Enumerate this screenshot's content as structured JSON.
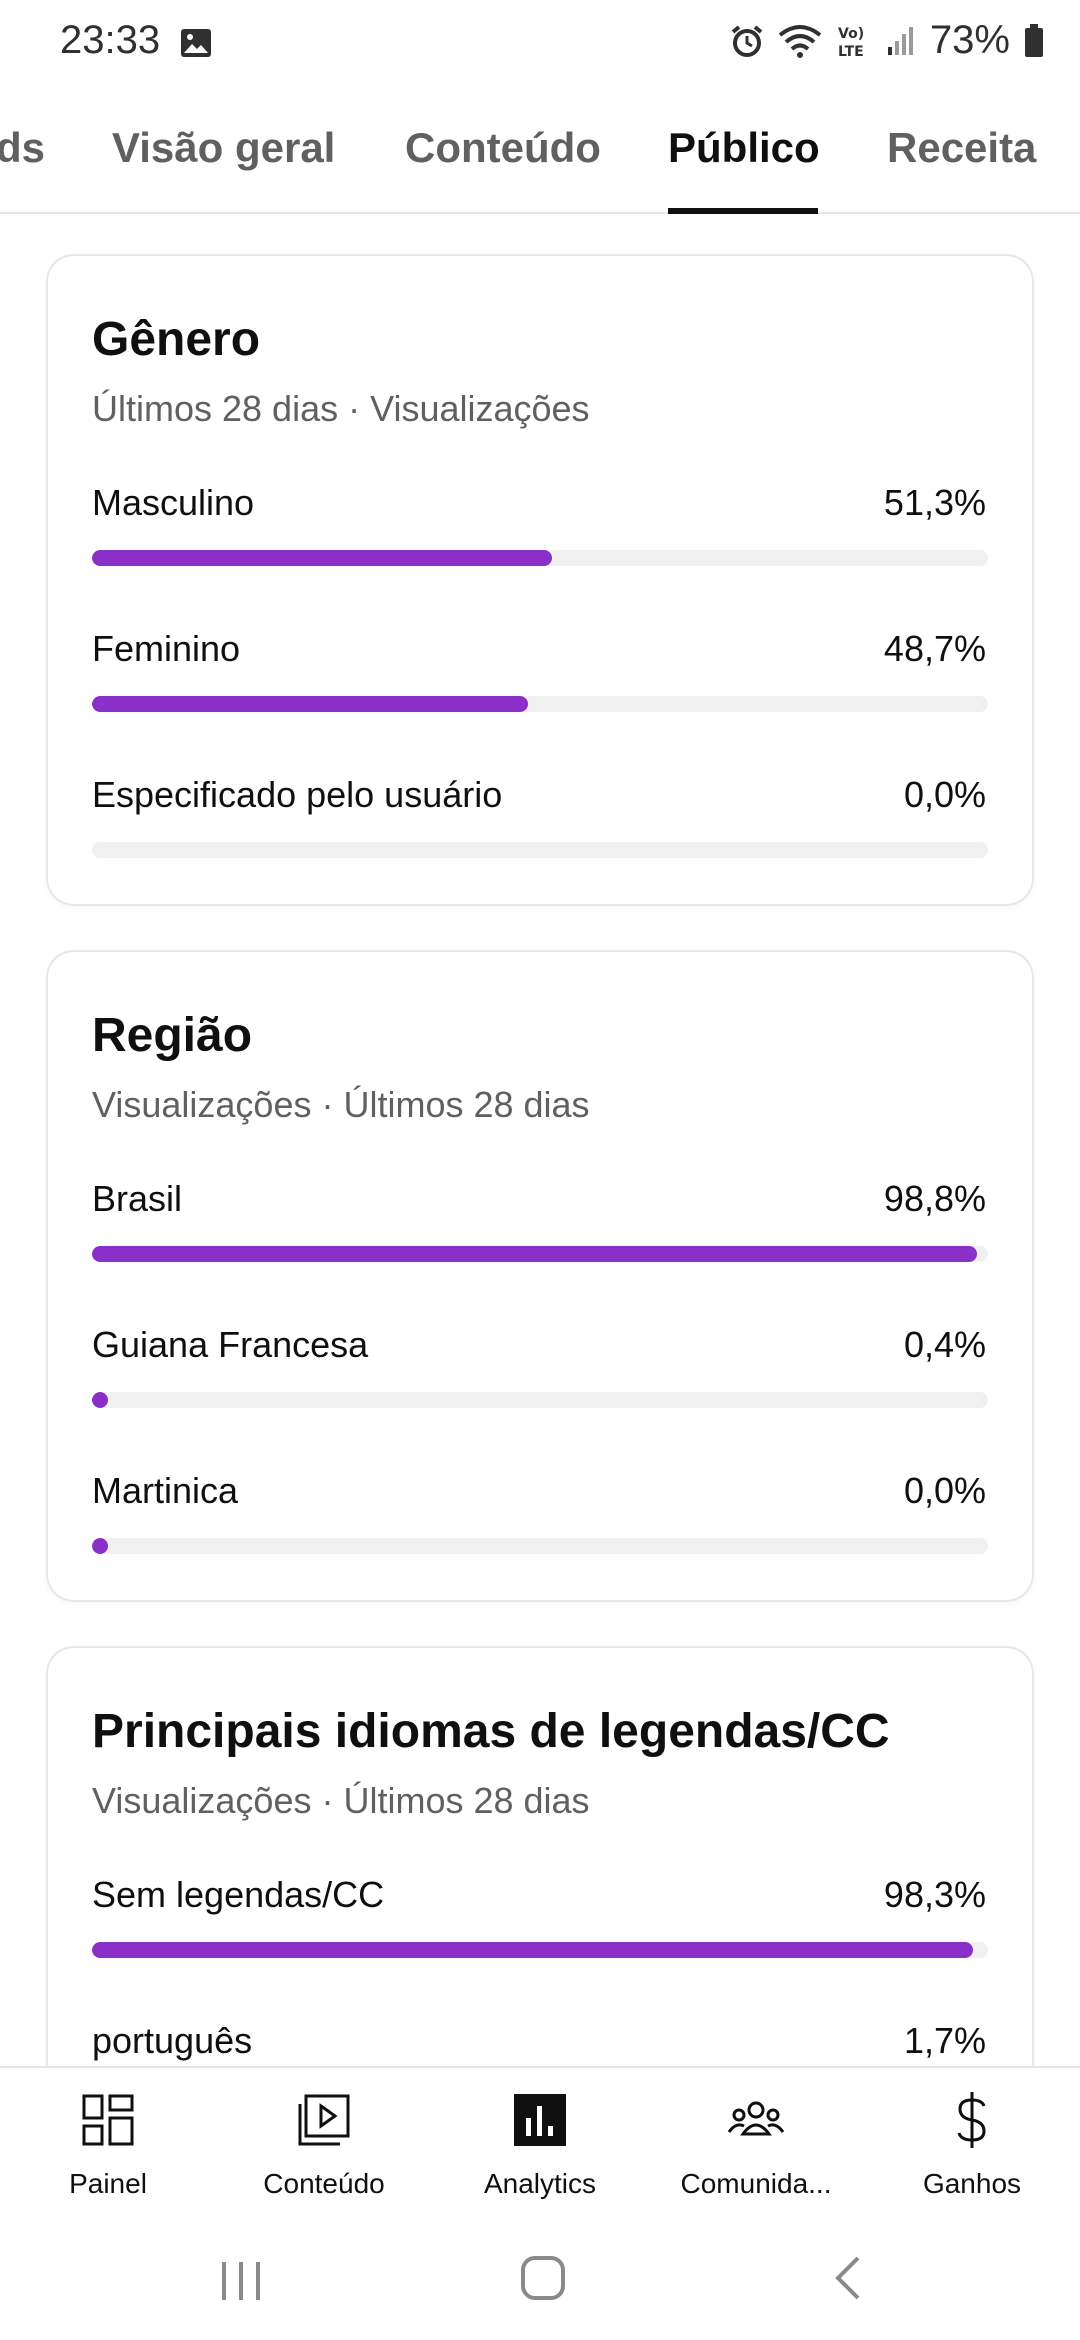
{
  "status_bar": {
    "time": "23:33",
    "battery": "73%"
  },
  "tabs": [
    {
      "label": "ds",
      "active": false
    },
    {
      "label": "Visão geral",
      "active": false
    },
    {
      "label": "Conteúdo",
      "active": false
    },
    {
      "label": "Público",
      "active": true
    },
    {
      "label": "Receita",
      "active": false
    }
  ],
  "cards": {
    "gender": {
      "title": "Gênero",
      "subtitle": "Últimos 28 dias · Visualizações",
      "rows": [
        {
          "label": "Masculino",
          "value": "51,3%",
          "fraction": 0.513
        },
        {
          "label": "Feminino",
          "value": "48,7%",
          "fraction": 0.487
        },
        {
          "label": "Especificado pelo usuário",
          "value": "0,0%",
          "fraction": 0.0
        }
      ]
    },
    "region": {
      "title": "Região",
      "subtitle": "Visualizações · Últimos 28 dias",
      "rows": [
        {
          "label": "Brasil",
          "value": "98,8%",
          "fraction": 0.988
        },
        {
          "label": "Guiana Francesa",
          "value": "0,4%",
          "fraction": 0.004
        },
        {
          "label": "Martinica",
          "value": "0,0%",
          "fraction": 0.0
        }
      ]
    },
    "captions": {
      "title": "Principais idiomas de legendas/CC",
      "subtitle": "Visualizações · Últimos 28 dias",
      "rows": [
        {
          "label": "Sem legendas/CC",
          "value": "98,3%",
          "fraction": 0.983
        },
        {
          "label": "português",
          "value": "1,7%",
          "fraction": 0.017
        }
      ]
    }
  },
  "bottom_nav": [
    {
      "label": "Painel",
      "icon": "dashboard-icon"
    },
    {
      "label": "Conteúdo",
      "icon": "content-icon"
    },
    {
      "label": "Analytics",
      "icon": "analytics-icon",
      "active": true
    },
    {
      "label": "Comunida...",
      "icon": "community-icon"
    },
    {
      "label": "Ganhos",
      "icon": "dollar-icon"
    }
  ],
  "colors": {
    "accent": "#8b2fc9",
    "track": "#f0f0f0",
    "text": "#0f0f0f",
    "muted": "#606060"
  }
}
